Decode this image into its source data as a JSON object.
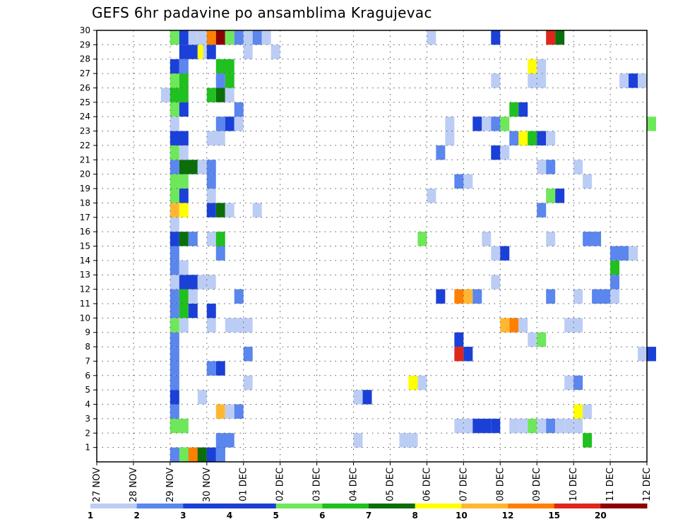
{
  "chart_data": {
    "type": "heatmap",
    "title": "GEFS 6hr padavine po ansamblima Kragujevac",
    "x_tick_labels": [
      "27 NOV",
      "28 NOV",
      "29 NOV",
      "30 NOV",
      "01 DEC",
      "02 DEC",
      "03 DEC",
      "04 DEC",
      "05 DEC",
      "06 DEC",
      "07 DEC",
      "08 DEC",
      "09 DEC",
      "10 DEC",
      "11 DEC",
      "12 DEC"
    ],
    "y_tick_labels": [
      "1",
      "2",
      "3",
      "4",
      "5",
      "6",
      "7",
      "8",
      "9",
      "10",
      "11",
      "12",
      "13",
      "14",
      "15",
      "16",
      "17",
      "18",
      "19",
      "20",
      "21",
      "22",
      "23",
      "24",
      "25",
      "26",
      "27",
      "28",
      "29",
      "30"
    ],
    "xlim_day": [
      0,
      15
    ],
    "ylim_member": [
      0,
      30
    ],
    "grid": true,
    "colorbar": {
      "bins": [
        1,
        2,
        3,
        4,
        5,
        6,
        7,
        8,
        10,
        12,
        15,
        20
      ],
      "tick_labels": [
        "1",
        "2",
        "3",
        "4",
        "5",
        "6",
        "7",
        "8",
        "10",
        "12",
        "15",
        "20"
      ],
      "colors": [
        "#bccdf5",
        "#5b86ee",
        "#1a40d8",
        "#1f3ed0",
        "#6ee85a",
        "#20c020",
        "#0b6e0b",
        "#ffff00",
        "#ffb732",
        "#ff8000",
        "#e0261a",
        "#8c0000"
      ]
    },
    "cell_colors": [
      "#bccdf5",
      "#5b86ee",
      "#1a40d8",
      "#6ee85a",
      "#20c020",
      "#0b6e0b",
      "#ffff00",
      "#ffb732",
      "#ff8000",
      "#e0261a",
      "#8c0000"
    ],
    "cells": [
      [
        2.0,
        0,
        2.5,
        1,
        1
      ],
      [
        2.5,
        0,
        3.0,
        1,
        1
      ],
      [
        3.25,
        0,
        3.5,
        1,
        2
      ],
      [
        2.25,
        0,
        2.5,
        1,
        3
      ],
      [
        2.5,
        0,
        2.75,
        1,
        8
      ],
      [
        2.75,
        0,
        3.0,
        1,
        5
      ],
      [
        3.0,
        0,
        3.25,
        1,
        2
      ],
      [
        3.25,
        0,
        3.5,
        1,
        1
      ],
      [
        3.25,
        1,
        3.75,
        2,
        1
      ],
      [
        7.0,
        1,
        7.25,
        2,
        0
      ],
      [
        8.25,
        1,
        8.75,
        2,
        0
      ],
      [
        13.25,
        1,
        13.5,
        2,
        4
      ],
      [
        2.0,
        2,
        2.5,
        3,
        3
      ],
      [
        9.75,
        2,
        10.0,
        3,
        0
      ],
      [
        10.0,
        2,
        10.25,
        3,
        0
      ],
      [
        10.25,
        2,
        10.75,
        3,
        2
      ],
      [
        10.75,
        2,
        11.0,
        3,
        2
      ],
      [
        11.25,
        2,
        11.5,
        3,
        0
      ],
      [
        11.5,
        2,
        11.75,
        3,
        0
      ],
      [
        11.75,
        2,
        12.0,
        3,
        3
      ],
      [
        12.0,
        2,
        12.25,
        3,
        0
      ],
      [
        12.25,
        2,
        12.5,
        3,
        1
      ],
      [
        12.5,
        2,
        12.75,
        3,
        0
      ],
      [
        12.75,
        2,
        13.0,
        3,
        0
      ],
      [
        13.0,
        2,
        13.25,
        3,
        0
      ],
      [
        2.0,
        3,
        2.25,
        4,
        1
      ],
      [
        3.25,
        3,
        3.5,
        4,
        7
      ],
      [
        3.5,
        3,
        3.75,
        4,
        0
      ],
      [
        3.75,
        3,
        4.0,
        4,
        1
      ],
      [
        13.0,
        3,
        13.25,
        4,
        6
      ],
      [
        13.25,
        3,
        13.5,
        4,
        0
      ],
      [
        2.0,
        4,
        2.25,
        5,
        2
      ],
      [
        2.75,
        4,
        3.0,
        5,
        0
      ],
      [
        7.0,
        4,
        7.25,
        5,
        0
      ],
      [
        7.25,
        4,
        7.5,
        5,
        2
      ],
      [
        2.0,
        5,
        2.25,
        6,
        1
      ],
      [
        4.0,
        5,
        4.25,
        6,
        0
      ],
      [
        8.5,
        5,
        8.75,
        6,
        6
      ],
      [
        8.75,
        5,
        9.0,
        6,
        0
      ],
      [
        12.75,
        5,
        13.0,
        6,
        0
      ],
      [
        13.0,
        5,
        13.25,
        6,
        1
      ],
      [
        2.0,
        6,
        2.25,
        7,
        1
      ],
      [
        3.0,
        6,
        3.25,
        7,
        1
      ],
      [
        3.25,
        6,
        3.5,
        7,
        2
      ],
      [
        2.0,
        7,
        2.25,
        8,
        1
      ],
      [
        4.0,
        7,
        4.25,
        8,
        1
      ],
      [
        9.75,
        7,
        10.0,
        8,
        9
      ],
      [
        10.0,
        7,
        10.25,
        8,
        2
      ],
      [
        14.75,
        7,
        15.0,
        8,
        0
      ],
      [
        15.0,
        7,
        15.25,
        8,
        2
      ],
      [
        2.0,
        8,
        2.25,
        9,
        1
      ],
      [
        9.75,
        8,
        10.0,
        9,
        2
      ],
      [
        11.75,
        8,
        12.0,
        9,
        0
      ],
      [
        12.0,
        8,
        12.25,
        9,
        3
      ],
      [
        2.0,
        9,
        2.25,
        10,
        3
      ],
      [
        2.25,
        9,
        2.5,
        10,
        0
      ],
      [
        3.0,
        9,
        3.25,
        10,
        0
      ],
      [
        3.5,
        9,
        4.25,
        10,
        0
      ],
      [
        11.0,
        9,
        11.25,
        10,
        7
      ],
      [
        11.25,
        9,
        11.5,
        10,
        8
      ],
      [
        11.5,
        9,
        11.75,
        10,
        0
      ],
      [
        12.75,
        9,
        13.25,
        10,
        0
      ],
      [
        2.0,
        10,
        2.25,
        11,
        1
      ],
      [
        2.25,
        10,
        2.5,
        11,
        4
      ],
      [
        2.5,
        10,
        2.75,
        11,
        2
      ],
      [
        3.0,
        10,
        3.25,
        11,
        2
      ],
      [
        2.0,
        11,
        2.25,
        12,
        1
      ],
      [
        2.25,
        11,
        2.5,
        12,
        4
      ],
      [
        2.5,
        11,
        2.75,
        12,
        0
      ],
      [
        3.75,
        11,
        4.0,
        12,
        1
      ],
      [
        9.25,
        11,
        9.5,
        12,
        2
      ],
      [
        9.75,
        11,
        10.0,
        12,
        8
      ],
      [
        10.0,
        11,
        10.25,
        12,
        7
      ],
      [
        10.25,
        11,
        10.5,
        12,
        1
      ],
      [
        12.25,
        11,
        12.5,
        12,
        1
      ],
      [
        13.0,
        11,
        13.25,
        12,
        0
      ],
      [
        13.5,
        11,
        14.0,
        12,
        1
      ],
      [
        14.0,
        11,
        14.25,
        12,
        0
      ],
      [
        2.0,
        12,
        2.25,
        13,
        0
      ],
      [
        2.25,
        12,
        2.75,
        13,
        2
      ],
      [
        2.75,
        12,
        3.25,
        13,
        0
      ],
      [
        10.75,
        12,
        11.0,
        13,
        0
      ],
      [
        14.0,
        12,
        14.25,
        13,
        1
      ],
      [
        2.0,
        13,
        2.25,
        14,
        1
      ],
      [
        2.25,
        13,
        2.5,
        14,
        0
      ],
      [
        14.0,
        13,
        14.25,
        14,
        4
      ],
      [
        2.0,
        14,
        2.25,
        15,
        1
      ],
      [
        3.25,
        14,
        3.5,
        15,
        1
      ],
      [
        10.75,
        14,
        11.0,
        15,
        0
      ],
      [
        11.0,
        14,
        11.25,
        15,
        2
      ],
      [
        14.0,
        14,
        14.5,
        15,
        1
      ],
      [
        14.5,
        14,
        14.75,
        15,
        0
      ],
      [
        2.0,
        15,
        2.25,
        16,
        3
      ],
      [
        2.0,
        15,
        2.25,
        16,
        2
      ],
      [
        2.25,
        15,
        2.5,
        16,
        5
      ],
      [
        2.5,
        15,
        2.75,
        16,
        1
      ],
      [
        3.0,
        15,
        3.25,
        16,
        0
      ],
      [
        3.25,
        15,
        3.5,
        16,
        4
      ],
      [
        8.75,
        15,
        9.0,
        16,
        3
      ],
      [
        10.5,
        15,
        10.75,
        16,
        0
      ],
      [
        12.25,
        15,
        12.5,
        16,
        0
      ],
      [
        13.25,
        15,
        13.75,
        16,
        1
      ],
      [
        2.0,
        16,
        2.25,
        17,
        0
      ],
      [
        2.0,
        17,
        2.25,
        18,
        7
      ],
      [
        2.25,
        17,
        2.5,
        18,
        6
      ],
      [
        3.0,
        17,
        3.25,
        18,
        2
      ],
      [
        3.25,
        17,
        3.5,
        18,
        5
      ],
      [
        3.5,
        17,
        3.75,
        18,
        0
      ],
      [
        4.25,
        17,
        4.5,
        18,
        0
      ],
      [
        12.0,
        17,
        12.25,
        18,
        1
      ],
      [
        2.0,
        18,
        2.25,
        19,
        3
      ],
      [
        2.25,
        18,
        2.5,
        19,
        2
      ],
      [
        3.0,
        18,
        3.25,
        19,
        0
      ],
      [
        9.0,
        18,
        9.25,
        19,
        0
      ],
      [
        12.25,
        18,
        12.5,
        19,
        3
      ],
      [
        12.5,
        18,
        12.75,
        19,
        2
      ],
      [
        2.0,
        19,
        2.5,
        20,
        3
      ],
      [
        3.0,
        19,
        3.25,
        20,
        1
      ],
      [
        9.75,
        19,
        10.0,
        20,
        1
      ],
      [
        10.0,
        19,
        10.25,
        20,
        0
      ],
      [
        13.25,
        19,
        13.5,
        20,
        0
      ],
      [
        2.0,
        20,
        2.25,
        21,
        1
      ],
      [
        2.25,
        20,
        2.75,
        21,
        5
      ],
      [
        2.75,
        20,
        3.0,
        21,
        0
      ],
      [
        3.0,
        20,
        3.25,
        21,
        1
      ],
      [
        12.0,
        20,
        12.25,
        21,
        0
      ],
      [
        12.25,
        20,
        12.5,
        21,
        1
      ],
      [
        13.0,
        20,
        13.25,
        21,
        0
      ],
      [
        2.0,
        21,
        2.25,
        22,
        3
      ],
      [
        2.25,
        21,
        2.5,
        22,
        0
      ],
      [
        9.25,
        21,
        9.5,
        22,
        1
      ],
      [
        10.75,
        21,
        11.0,
        22,
        2
      ],
      [
        11.0,
        21,
        11.25,
        22,
        0
      ],
      [
        2.0,
        22,
        2.5,
        23,
        2
      ],
      [
        3.0,
        22,
        3.5,
        23,
        0
      ],
      [
        9.5,
        22,
        9.75,
        23,
        0
      ],
      [
        11.25,
        22,
        11.5,
        23,
        1
      ],
      [
        11.5,
        22,
        11.75,
        23,
        6
      ],
      [
        11.75,
        22,
        12.0,
        23,
        4
      ],
      [
        12.0,
        22,
        12.25,
        23,
        2
      ],
      [
        12.25,
        22,
        12.5,
        23,
        0
      ],
      [
        2.0,
        23,
        2.25,
        24,
        0
      ],
      [
        3.25,
        23,
        3.5,
        24,
        1
      ],
      [
        3.5,
        23,
        3.75,
        24,
        2
      ],
      [
        3.75,
        23,
        4.0,
        24,
        0
      ],
      [
        9.5,
        23,
        9.75,
        24,
        0
      ],
      [
        10.25,
        23,
        10.5,
        24,
        2
      ],
      [
        10.5,
        23,
        10.75,
        24,
        0
      ],
      [
        10.75,
        23,
        11.0,
        24,
        1
      ],
      [
        11.0,
        23,
        11.25,
        24,
        3
      ],
      [
        15.0,
        23,
        15.25,
        24,
        3
      ],
      [
        2.0,
        24,
        2.25,
        25,
        3
      ],
      [
        2.25,
        24,
        2.5,
        25,
        2
      ],
      [
        3.75,
        24,
        4.0,
        25,
        1
      ],
      [
        11.25,
        24,
        11.5,
        25,
        4
      ],
      [
        11.5,
        24,
        11.75,
        25,
        2
      ],
      [
        1.75,
        25,
        2.0,
        26,
        0
      ],
      [
        2.0,
        25,
        2.5,
        26,
        4
      ],
      [
        3.0,
        25,
        3.25,
        26,
        4
      ],
      [
        3.25,
        25,
        3.5,
        26,
        5
      ],
      [
        3.5,
        25,
        3.75,
        26,
        0
      ],
      [
        2.0,
        26,
        2.25,
        27,
        3
      ],
      [
        2.25,
        26,
        2.5,
        27,
        4
      ],
      [
        3.25,
        26,
        3.5,
        27,
        1
      ],
      [
        3.5,
        26,
        3.75,
        27,
        4
      ],
      [
        10.75,
        26,
        11.0,
        27,
        0
      ],
      [
        11.75,
        26,
        12.25,
        27,
        0
      ],
      [
        14.25,
        26,
        14.5,
        27,
        0
      ],
      [
        14.5,
        26,
        14.75,
        27,
        2
      ],
      [
        14.75,
        26,
        15.0,
        27,
        0
      ],
      [
        2.0,
        27,
        2.25,
        28,
        2
      ],
      [
        2.25,
        27,
        2.5,
        28,
        1
      ],
      [
        3.25,
        27,
        3.75,
        28,
        4
      ],
      [
        11.75,
        27,
        12.0,
        28,
        6
      ],
      [
        12.0,
        27,
        12.25,
        28,
        0
      ],
      [
        2.25,
        28,
        2.75,
        29,
        2
      ],
      [
        2.75,
        28,
        2.9,
        29,
        6
      ],
      [
        2.9,
        28,
        3.0,
        29,
        0
      ],
      [
        3.0,
        28,
        3.25,
        29,
        2
      ],
      [
        4.0,
        28,
        4.25,
        29,
        0
      ],
      [
        4.75,
        28,
        5.0,
        29,
        0
      ],
      [
        2.0,
        29,
        2.25,
        30,
        3
      ],
      [
        2.25,
        29,
        2.5,
        30,
        2
      ],
      [
        2.5,
        29,
        2.75,
        30,
        0
      ],
      [
        2.75,
        29,
        3.0,
        30,
        0
      ],
      [
        3.0,
        29,
        3.25,
        30,
        8
      ],
      [
        3.25,
        29,
        3.5,
        30,
        10
      ],
      [
        3.5,
        29,
        3.75,
        30,
        3
      ],
      [
        3.75,
        29,
        4.0,
        30,
        1
      ],
      [
        4.0,
        29,
        4.25,
        30,
        0
      ],
      [
        4.25,
        29,
        4.5,
        30,
        1
      ],
      [
        4.5,
        29,
        4.75,
        30,
        0
      ],
      [
        9.0,
        29,
        9.25,
        30,
        0
      ],
      [
        10.75,
        29,
        11.0,
        30,
        2
      ],
      [
        12.25,
        29,
        12.5,
        30,
        9
      ],
      [
        12.5,
        29,
        12.75,
        30,
        5
      ]
    ]
  }
}
